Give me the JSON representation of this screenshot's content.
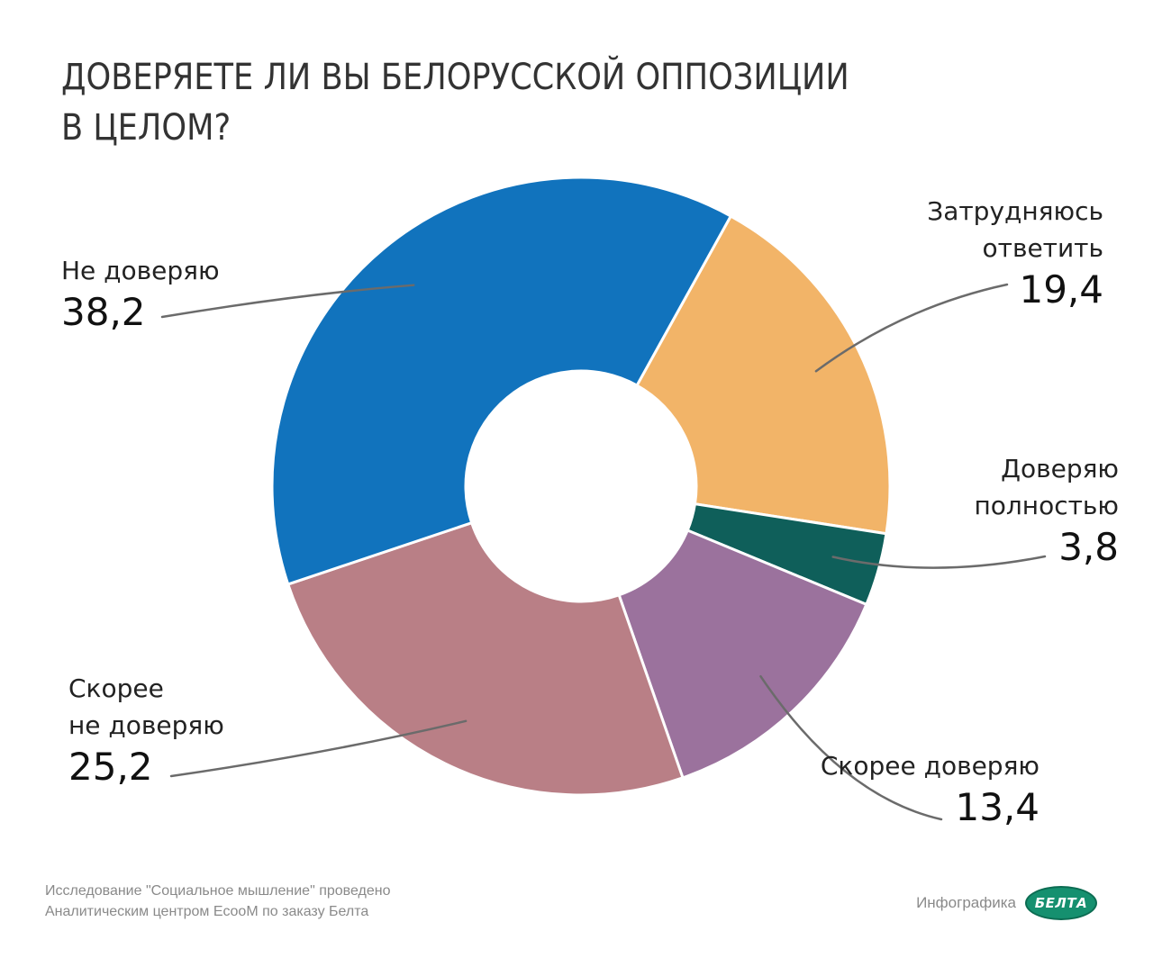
{
  "title": {
    "line1": "ДОВЕРЯЕТЕ ЛИ ВЫ БЕЛОРУССКОЙ ОППОЗИЦИИ",
    "line2": "В ЦЕЛОМ?"
  },
  "chart_data": {
    "type": "pie",
    "style": "donut",
    "slices": [
      {
        "label": "Затрудняюсь ответить",
        "label_lines": [
          "Затрудняюсь",
          "ответить"
        ],
        "value": 19.4,
        "value_text": "19,4",
        "color": "#f2b468"
      },
      {
        "label": "Доверяю полностью",
        "label_lines": [
          "Доверяю",
          "полностью"
        ],
        "value": 3.8,
        "value_text": "3,8",
        "color": "#0f5f5a"
      },
      {
        "label": "Скорее доверяю",
        "label_lines": [
          "Скорее доверяю"
        ],
        "value": 13.4,
        "value_text": "13,4",
        "color": "#9b729d"
      },
      {
        "label": "Скорее не доверяю",
        "label_lines": [
          "Скорее",
          "не доверяю"
        ],
        "value": 25.2,
        "value_text": "25,2",
        "color": "#b97f86"
      },
      {
        "label": "Не доверяю",
        "label_lines": [
          "Не доверяю"
        ],
        "value": 38.2,
        "value_text": "38,2",
        "color": "#1173bd"
      }
    ]
  },
  "footer": {
    "line1": "Исследование \"Социальное мышление\" проведено",
    "line2": "Аналитическим центром EcooM по заказу Белта"
  },
  "credit": {
    "label": "Инфографика",
    "logo_text": "БЕЛТА",
    "logo_color": "#15906f"
  }
}
